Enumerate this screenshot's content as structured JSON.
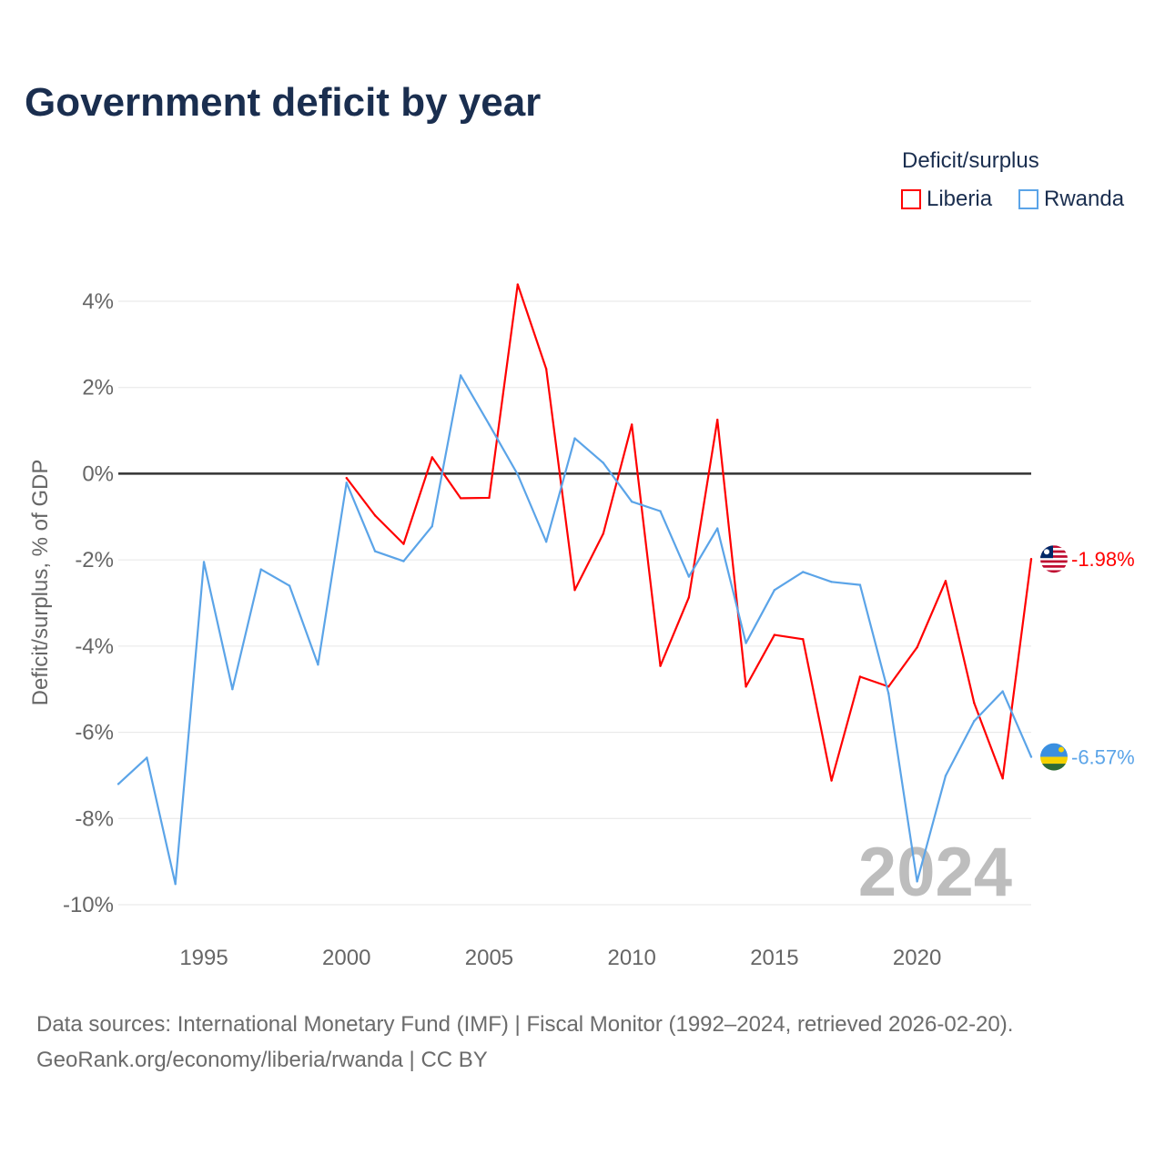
{
  "chart_data": {
    "type": "line",
    "title": "Government deficit by year",
    "xlabel": "",
    "ylabel": "Deficit/surplus, % of GDP",
    "legend_title": "Deficit/surplus",
    "legend_position": "top-right",
    "xlim": [
      1992,
      2024
    ],
    "ylim": [
      -10,
      4
    ],
    "x_ticks": [
      1995,
      2000,
      2005,
      2010,
      2015,
      2020
    ],
    "y_ticks": [
      4,
      2,
      0,
      -2,
      -4,
      -6,
      -8,
      -10
    ],
    "y_tick_labels": [
      "4%",
      "2%",
      "0%",
      "-2%",
      "-4%",
      "-6%",
      "-8%",
      "-10%"
    ],
    "grid": true,
    "annotation_year": "2024",
    "series": [
      {
        "name": "Liberia",
        "color": "#ff0000",
        "end_label": "-1.98%",
        "x": [
          2000,
          2001,
          2002,
          2003,
          2004,
          2005,
          2006,
          2007,
          2008,
          2009,
          2010,
          2011,
          2012,
          2013,
          2014,
          2015,
          2016,
          2017,
          2018,
          2019,
          2020,
          2021,
          2022,
          2023,
          2024
        ],
        "values": [
          -0.1,
          -0.97,
          -1.63,
          0.38,
          -0.57,
          -0.56,
          4.39,
          2.43,
          -2.7,
          -1.39,
          1.14,
          -4.46,
          -2.87,
          1.25,
          -4.94,
          -3.74,
          -3.84,
          -7.12,
          -4.71,
          -4.94,
          -4.03,
          -2.49,
          -5.32,
          -7.07,
          -1.98
        ]
      },
      {
        "name": "Rwanda",
        "color": "#5ba4e8",
        "end_label": "-6.57%",
        "x": [
          1992,
          1993,
          1994,
          1995,
          1996,
          1997,
          1998,
          1999,
          2000,
          2001,
          2002,
          2003,
          2004,
          2005,
          2006,
          2007,
          2008,
          2009,
          2010,
          2011,
          2012,
          2013,
          2014,
          2015,
          2016,
          2017,
          2018,
          2019,
          2020,
          2021,
          2022,
          2023,
          2024
        ],
        "values": [
          -7.2,
          -6.59,
          -9.52,
          -2.05,
          -5.0,
          -2.22,
          -2.6,
          -4.43,
          -0.21,
          -1.8,
          -2.03,
          -1.22,
          2.28,
          1.14,
          -0.02,
          -1.58,
          0.82,
          0.25,
          -0.65,
          -0.87,
          -2.39,
          -1.27,
          -3.93,
          -2.7,
          -2.28,
          -2.51,
          -2.58,
          -5.1,
          -9.46,
          -7.01,
          -5.74,
          -5.05,
          -6.57
        ]
      }
    ]
  },
  "footer": {
    "line1": "Data sources: International Monetary Fund (IMF) | Fiscal Monitor (1992–2024, retrieved 2026-02-20).",
    "line2": "GeoRank.org/economy/liberia/rwanda | CC BY"
  }
}
